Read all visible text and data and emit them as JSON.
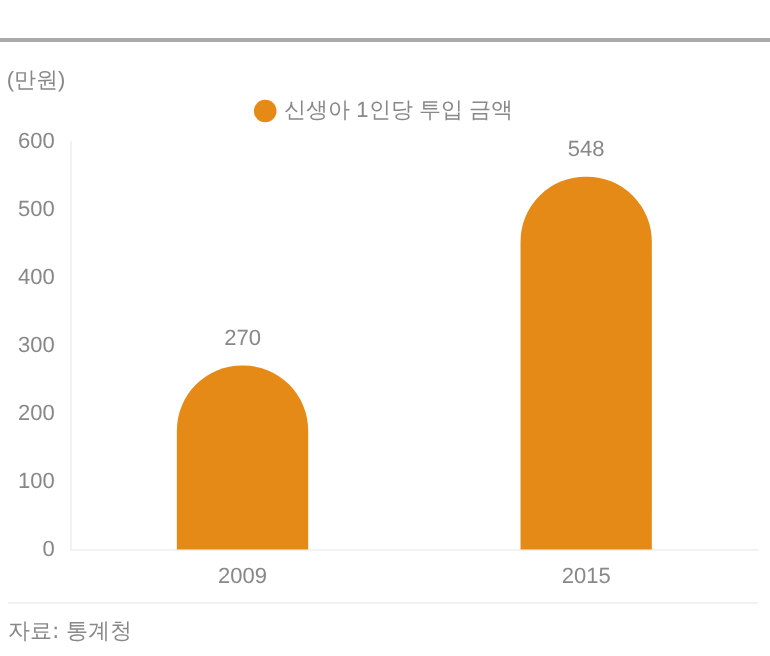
{
  "chart_data": {
    "type": "bar",
    "ylabel": "(만원)",
    "categories": [
      "2009",
      "2015"
    ],
    "series": [
      {
        "name": "신생아 1인당 투입 금액",
        "color": "#e68a17",
        "values": [
          270,
          548
        ]
      }
    ],
    "ylim": [
      0,
      600
    ],
    "yticks": [
      0,
      100,
      200,
      300,
      400,
      500,
      600
    ],
    "grid": false,
    "legend": "top",
    "data_labels": true,
    "annotations": [
      "자료: 통계청"
    ]
  }
}
